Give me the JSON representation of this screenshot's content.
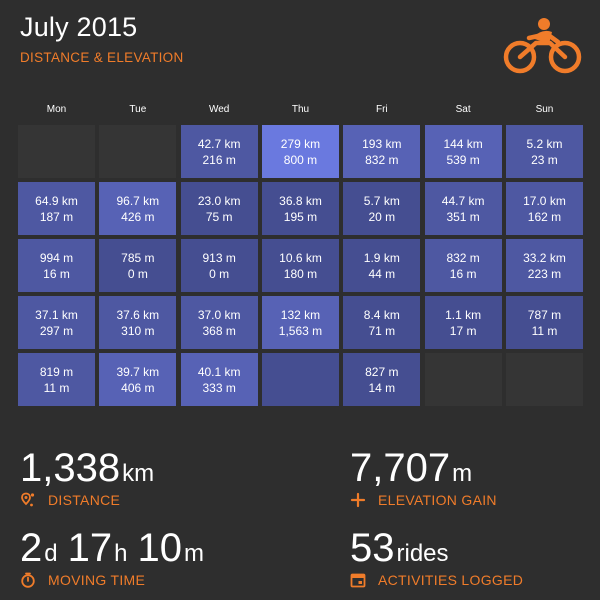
{
  "header": {
    "title": "July 2015",
    "subtitle": "DISTANCE & ELEVATION",
    "logo_icon": "cyclist-icon"
  },
  "weekdays": [
    "Mon",
    "Tue",
    "Wed",
    "Thu",
    "Fri",
    "Sat",
    "Sun"
  ],
  "calendar": {
    "rows": [
      [
        {
          "line1": "",
          "line2": "",
          "level": "empty"
        },
        {
          "line1": "",
          "line2": "",
          "level": "empty"
        },
        {
          "line1": "42.7 km",
          "line2": "216 m",
          "level": "l2"
        },
        {
          "line1": "279 km",
          "line2": "800 m",
          "level": "l4"
        },
        {
          "line1": "193 km",
          "line2": "832 m",
          "level": "l3"
        },
        {
          "line1": "144 km",
          "line2": "539 m",
          "level": "l3"
        },
        {
          "line1": "5.2 km",
          "line2": "23 m",
          "level": "l2"
        }
      ],
      [
        {
          "line1": "64.9 km",
          "line2": "187 m",
          "level": "l2"
        },
        {
          "line1": "96.7 km",
          "line2": "426 m",
          "level": "l3"
        },
        {
          "line1": "23.0 km",
          "line2": "75 m",
          "level": "l1"
        },
        {
          "line1": "36.8 km",
          "line2": "195 m",
          "level": "l1"
        },
        {
          "line1": "5.7 km",
          "line2": "20 m",
          "level": "l1"
        },
        {
          "line1": "44.7 km",
          "line2": "351 m",
          "level": "l2"
        },
        {
          "line1": "17.0 km",
          "line2": "162 m",
          "level": "l2"
        }
      ],
      [
        {
          "line1": "994 m",
          "line2": "16 m",
          "level": "l2"
        },
        {
          "line1": "785 m",
          "line2": "0 m",
          "level": "l1"
        },
        {
          "line1": "913 m",
          "line2": "0 m",
          "level": "l1"
        },
        {
          "line1": "10.6 km",
          "line2": "180 m",
          "level": "l1"
        },
        {
          "line1": "1.9 km",
          "line2": "44 m",
          "level": "l1"
        },
        {
          "line1": "832 m",
          "line2": "16 m",
          "level": "l2"
        },
        {
          "line1": "33.2 km",
          "line2": "223 m",
          "level": "l2"
        }
      ],
      [
        {
          "line1": "37.1 km",
          "line2": "297 m",
          "level": "l2"
        },
        {
          "line1": "37.6 km",
          "line2": "310 m",
          "level": "l2"
        },
        {
          "line1": "37.0 km",
          "line2": "368 m",
          "level": "l2"
        },
        {
          "line1": "132 km",
          "line2": "1,563 m",
          "level": "l3"
        },
        {
          "line1": "8.4 km",
          "line2": "71 m",
          "level": "l1"
        },
        {
          "line1": "1.1 km",
          "line2": "17 m",
          "level": "l1"
        },
        {
          "line1": "787 m",
          "line2": "11 m",
          "level": "l1"
        }
      ],
      [
        {
          "line1": "819 m",
          "line2": "11 m",
          "level": "l2"
        },
        {
          "line1": "39.7 km",
          "line2": "406 m",
          "level": "l3"
        },
        {
          "line1": "40.1 km",
          "line2": "333 m",
          "level": "l3"
        },
        {
          "line1": "",
          "line2": "",
          "level": "l1"
        },
        {
          "line1": "827 m",
          "line2": "14 m",
          "level": "l1"
        },
        {
          "line1": "",
          "line2": "",
          "level": "empty"
        },
        {
          "line1": "",
          "line2": "",
          "level": "empty"
        }
      ]
    ]
  },
  "stats": {
    "distance": {
      "value": "1,338",
      "unit": "km",
      "label": "DISTANCE",
      "icon": "route-pin-icon"
    },
    "elevation": {
      "value": "7,707",
      "unit": "m",
      "label": "ELEVATION GAIN",
      "icon": "plus-icon"
    },
    "moving_time": {
      "days": "2",
      "days_unit": "d",
      "hours": "17",
      "hours_unit": "h",
      "minutes": "10",
      "minutes_unit": "m",
      "label": "MOVING TIME",
      "icon": "stopwatch-icon"
    },
    "activities": {
      "value": "53",
      "unit": "rides",
      "label": "ACTIVITIES LOGGED",
      "icon": "calendar-icon"
    }
  },
  "colors": {
    "background": "#2e2e2e",
    "accent": "#f07c2a",
    "cell_empty": "#353535",
    "cell_level1": "#454e91",
    "cell_level2": "#4e58a2",
    "cell_level3": "#5762b5",
    "cell_level4": "#6a79df"
  }
}
